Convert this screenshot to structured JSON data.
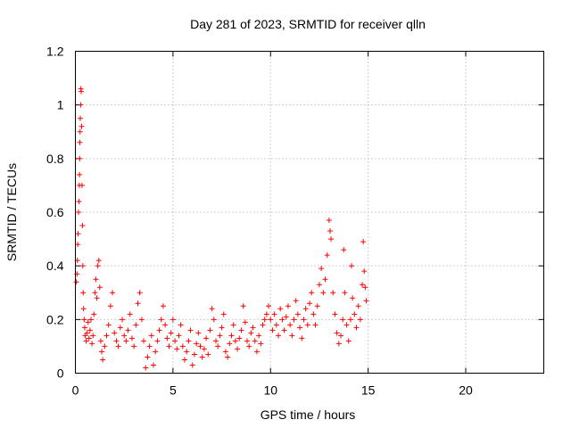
{
  "chart_data": {
    "type": "scatter",
    "title": "Day 281 of 2023, SRMTID for receiver qlln",
    "xlabel": "GPS time / hours",
    "ylabel": "SRMTID / TECUs",
    "xlim": [
      0,
      24
    ],
    "ylim": [
      0,
      1.2
    ],
    "xticks": [
      0,
      5,
      10,
      15,
      20
    ],
    "yticks": [
      0,
      0.2,
      0.4,
      0.6,
      0.8,
      1,
      1.2
    ],
    "ytick_labels": [
      "0",
      "0.2",
      "0.4",
      "0.6",
      "0.8",
      "1",
      "1.2"
    ],
    "grid": true,
    "marker": "+",
    "colors": {
      "series": "#ff0000",
      "frame": "#000000",
      "grid": "#a0a0a0"
    },
    "series": [
      {
        "name": "SRMTID",
        "points": [
          [
            0.05,
            0.34
          ],
          [
            0.08,
            0.37
          ],
          [
            0.1,
            0.42
          ],
          [
            0.12,
            0.48
          ],
          [
            0.14,
            0.52
          ],
          [
            0.16,
            0.6
          ],
          [
            0.18,
            0.64
          ],
          [
            0.2,
            0.7
          ],
          [
            0.21,
            0.74
          ],
          [
            0.22,
            0.8
          ],
          [
            0.23,
            0.86
          ],
          [
            0.24,
            0.9
          ],
          [
            0.25,
            0.95
          ],
          [
            0.27,
            1.0
          ],
          [
            0.28,
            1.06
          ],
          [
            0.3,
            1.05
          ],
          [
            0.32,
            0.92
          ],
          [
            0.34,
            0.7
          ],
          [
            0.36,
            0.55
          ],
          [
            0.38,
            0.4
          ],
          [
            0.4,
            0.3
          ],
          [
            0.42,
            0.24
          ],
          [
            0.45,
            0.2
          ],
          [
            0.48,
            0.17
          ],
          [
            0.5,
            0.14
          ],
          [
            0.55,
            0.12
          ],
          [
            0.6,
            0.15
          ],
          [
            0.65,
            0.19
          ],
          [
            0.7,
            0.13
          ],
          [
            0.75,
            0.16
          ],
          [
            0.8,
            0.2
          ],
          [
            0.85,
            0.11
          ],
          [
            0.9,
            0.14
          ],
          [
            0.95,
            0.22
          ],
          [
            1.0,
            0.3
          ],
          [
            1.05,
            0.35
          ],
          [
            1.1,
            0.28
          ],
          [
            1.15,
            0.4
          ],
          [
            1.2,
            0.42
          ],
          [
            1.25,
            0.32
          ],
          [
            1.3,
            0.12
          ],
          [
            1.35,
            0.08
          ],
          [
            1.4,
            0.05
          ],
          [
            1.5,
            0.1
          ],
          [
            1.6,
            0.14
          ],
          [
            1.7,
            0.18
          ],
          [
            1.8,
            0.25
          ],
          [
            1.9,
            0.3
          ],
          [
            2.0,
            0.15
          ],
          [
            2.1,
            0.12
          ],
          [
            2.2,
            0.1
          ],
          [
            2.3,
            0.17
          ],
          [
            2.4,
            0.2
          ],
          [
            2.5,
            0.14
          ],
          [
            2.6,
            0.12
          ],
          [
            2.7,
            0.16
          ],
          [
            2.8,
            0.22
          ],
          [
            2.9,
            0.13
          ],
          [
            3.0,
            0.1
          ],
          [
            3.1,
            0.18
          ],
          [
            3.2,
            0.26
          ],
          [
            3.3,
            0.3
          ],
          [
            3.4,
            0.2
          ],
          [
            3.5,
            0.12
          ],
          [
            3.6,
            0.02
          ],
          [
            3.7,
            0.06
          ],
          [
            3.8,
            0.1
          ],
          [
            3.9,
            0.14
          ],
          [
            4.0,
            0.03
          ],
          [
            4.1,
            0.08
          ],
          [
            4.2,
            0.12
          ],
          [
            4.3,
            0.16
          ],
          [
            4.4,
            0.2
          ],
          [
            4.5,
            0.25
          ],
          [
            4.6,
            0.18
          ],
          [
            4.7,
            0.13
          ],
          [
            4.8,
            0.1
          ],
          [
            4.9,
            0.15
          ],
          [
            5.0,
            0.2
          ],
          [
            5.1,
            0.12
          ],
          [
            5.2,
            0.09
          ],
          [
            5.3,
            0.14
          ],
          [
            5.4,
            0.18
          ],
          [
            5.5,
            0.1
          ],
          [
            5.6,
            0.05
          ],
          [
            5.7,
            0.08
          ],
          [
            5.8,
            0.12
          ],
          [
            5.9,
            0.16
          ],
          [
            6.0,
            0.03
          ],
          [
            6.1,
            0.07
          ],
          [
            6.2,
            0.11
          ],
          [
            6.3,
            0.15
          ],
          [
            6.4,
            0.1
          ],
          [
            6.5,
            0.06
          ],
          [
            6.6,
            0.09
          ],
          [
            6.7,
            0.13
          ],
          [
            6.8,
            0.07
          ],
          [
            6.9,
            0.16
          ],
          [
            7.0,
            0.24
          ],
          [
            7.1,
            0.2
          ],
          [
            7.2,
            0.12
          ],
          [
            7.3,
            0.1
          ],
          [
            7.4,
            0.14
          ],
          [
            7.5,
            0.17
          ],
          [
            7.6,
            0.22
          ],
          [
            7.7,
            0.08
          ],
          [
            7.8,
            0.06
          ],
          [
            7.9,
            0.11
          ],
          [
            8.0,
            0.14
          ],
          [
            8.1,
            0.18
          ],
          [
            8.2,
            0.12
          ],
          [
            8.3,
            0.09
          ],
          [
            8.4,
            0.13
          ],
          [
            8.5,
            0.16
          ],
          [
            8.6,
            0.25
          ],
          [
            8.7,
            0.19
          ],
          [
            8.8,
            0.12
          ],
          [
            8.9,
            0.1
          ],
          [
            9.0,
            0.15
          ],
          [
            9.1,
            0.17
          ],
          [
            9.2,
            0.12
          ],
          [
            9.3,
            0.08
          ],
          [
            9.4,
            0.14
          ],
          [
            9.5,
            0.11
          ],
          [
            9.6,
            0.18
          ],
          [
            9.7,
            0.2
          ],
          [
            9.8,
            0.22
          ],
          [
            9.9,
            0.25
          ],
          [
            10.0,
            0.2
          ],
          [
            10.1,
            0.16
          ],
          [
            10.2,
            0.22
          ],
          [
            10.3,
            0.18
          ],
          [
            10.4,
            0.14
          ],
          [
            10.5,
            0.24
          ],
          [
            10.6,
            0.2
          ],
          [
            10.7,
            0.16
          ],
          [
            10.8,
            0.21
          ],
          [
            10.9,
            0.25
          ],
          [
            11.0,
            0.18
          ],
          [
            11.1,
            0.14
          ],
          [
            11.2,
            0.2
          ],
          [
            11.3,
            0.27
          ],
          [
            11.4,
            0.22
          ],
          [
            11.5,
            0.17
          ],
          [
            11.6,
            0.13
          ],
          [
            11.7,
            0.2
          ],
          [
            11.8,
            0.24
          ],
          [
            11.9,
            0.18
          ],
          [
            12.0,
            0.26
          ],
          [
            12.1,
            0.3
          ],
          [
            12.2,
            0.22
          ],
          [
            12.3,
            0.18
          ],
          [
            12.4,
            0.25
          ],
          [
            12.5,
            0.33
          ],
          [
            12.6,
            0.39
          ],
          [
            12.7,
            0.3
          ],
          [
            12.8,
            0.35
          ],
          [
            12.9,
            0.44
          ],
          [
            13.0,
            0.57
          ],
          [
            13.05,
            0.53
          ],
          [
            13.1,
            0.5
          ],
          [
            13.2,
            0.3
          ],
          [
            13.3,
            0.22
          ],
          [
            13.4,
            0.15
          ],
          [
            13.5,
            0.11
          ],
          [
            13.6,
            0.14
          ],
          [
            13.7,
            0.2
          ],
          [
            13.75,
            0.46
          ],
          [
            13.8,
            0.3
          ],
          [
            13.9,
            0.18
          ],
          [
            14.0,
            0.12
          ],
          [
            14.1,
            0.2
          ],
          [
            14.15,
            0.4
          ],
          [
            14.2,
            0.28
          ],
          [
            14.3,
            0.22
          ],
          [
            14.4,
            0.17
          ],
          [
            14.5,
            0.25
          ],
          [
            14.6,
            0.2
          ],
          [
            14.7,
            0.33
          ],
          [
            14.75,
            0.49
          ],
          [
            14.8,
            0.38
          ],
          [
            14.85,
            0.32
          ],
          [
            14.9,
            0.27
          ]
        ]
      }
    ]
  }
}
